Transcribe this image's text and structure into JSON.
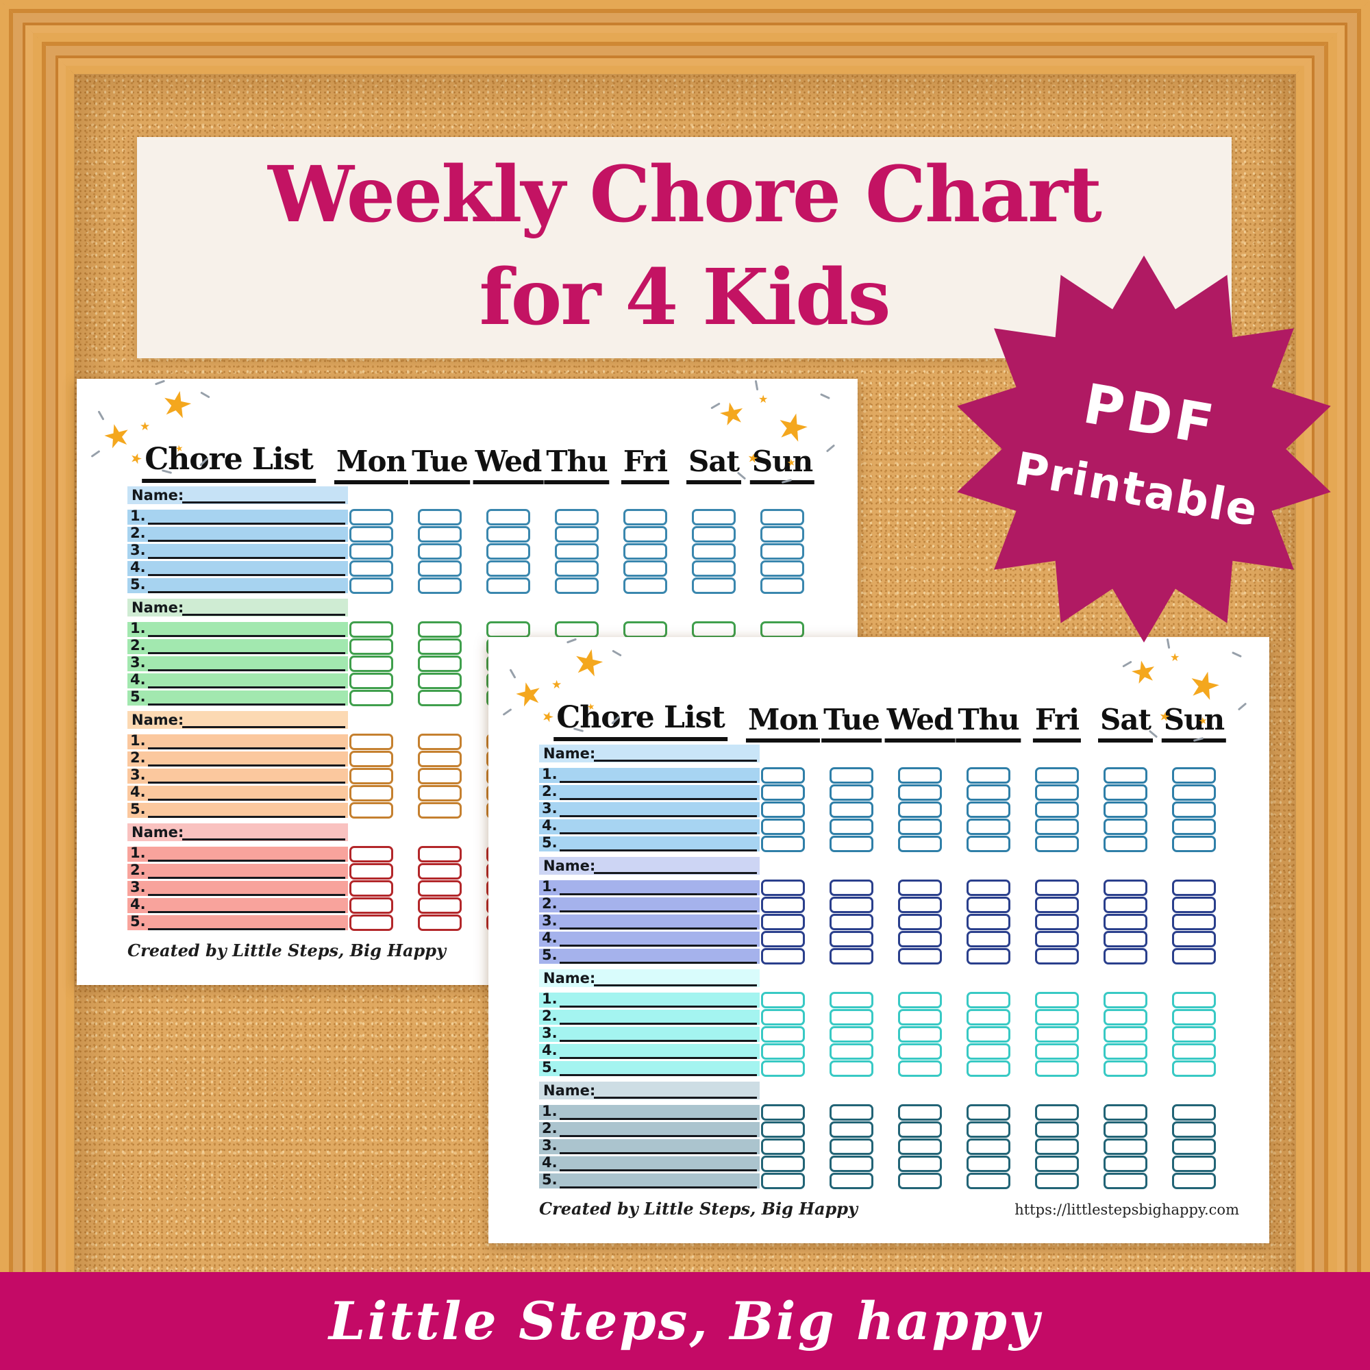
{
  "title_banner": {
    "line1": "Weekly Chore Chart",
    "line2": "for 4 Kids"
  },
  "badge": {
    "line1": "PDF",
    "line2": "Printable"
  },
  "chart_page": {
    "header_label": "Chore List",
    "days": [
      "Mon",
      "Tue",
      "Wed",
      "Thu",
      "Fri",
      "Sat",
      "Sun"
    ],
    "name_label": "Name:",
    "row_numbers": [
      "1.",
      "2.",
      "3.",
      "4.",
      "5."
    ],
    "credit": "Created by Little Steps, Big Happy"
  },
  "pages": [
    {
      "id": "page-back",
      "sections": [
        {
          "kid": "kid-1",
          "name_bg": "#c6e2f6",
          "row_bg": "#a7d3f0",
          "box_border": "#3a87ae"
        },
        {
          "kid": "kid-2",
          "name_bg": "#cfecd3",
          "row_bg": "#a2e8af",
          "box_border": "#3f9f4c"
        },
        {
          "kid": "kid-3",
          "name_bg": "#fcd9b3",
          "row_bg": "#fbc89e",
          "box_border": "#c5802f"
        },
        {
          "kid": "kid-4",
          "name_bg": "#f9c2c0",
          "row_bg": "#f8a39c",
          "box_border": "#b3272a"
        }
      ]
    },
    {
      "id": "page-front",
      "url": "https://littlestepsbighappy.com",
      "sections": [
        {
          "kid": "kid-1",
          "name_bg": "#c9e5f8",
          "row_bg": "#a7d4f2",
          "box_border": "#2f7fa8"
        },
        {
          "kid": "kid-2",
          "name_bg": "#cdd5f4",
          "row_bg": "#a5b2ec",
          "box_border": "#2a3f8c"
        },
        {
          "kid": "kid-3",
          "name_bg": "#d9fcfc",
          "row_bg": "#a4f4f0",
          "box_border": "#38c9c4"
        },
        {
          "kid": "kid-4",
          "name_bg": "#cddde4",
          "row_bg": "#abc4ce",
          "box_border": "#226476"
        }
      ]
    }
  ],
  "footer_banner": {
    "text": "Little Steps, Big happy"
  },
  "colors": {
    "title_text": "#c31363",
    "banner_bg": "#f7f1ea",
    "badge_bg": "#b01a63",
    "badge_text": "#ffffff",
    "footer_banner_bg": "#c40a66",
    "footer_banner_text": "#ffffff",
    "star_gold": "#f4a71e",
    "page_bg": "#ffffff",
    "header_text": "#111111"
  }
}
